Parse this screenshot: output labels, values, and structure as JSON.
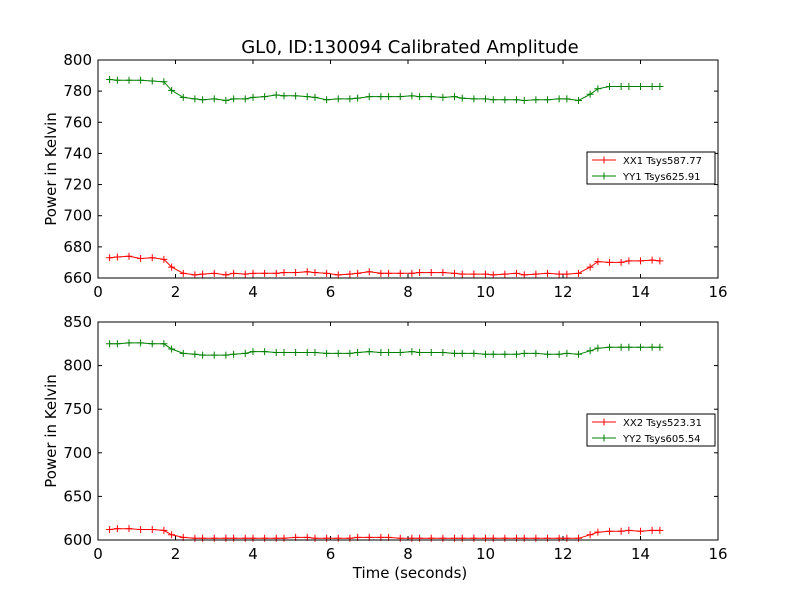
{
  "chart_data": [
    {
      "type": "line",
      "title": "GL0, ID:130094 Calibrated Amplitude",
      "xlabel": "",
      "ylabel": "Power in Kelvin",
      "xlim": [
        0,
        16
      ],
      "ylim": [
        660,
        800
      ],
      "xticks": [
        0,
        2,
        4,
        6,
        8,
        10,
        12,
        14,
        16
      ],
      "yticks": [
        660,
        680,
        700,
        720,
        740,
        760,
        780,
        800
      ],
      "grid": false,
      "legend_position": "center-right",
      "x": [
        0.3,
        0.5,
        0.8,
        1.1,
        1.4,
        1.7,
        1.9,
        2.2,
        2.5,
        2.7,
        3.0,
        3.3,
        3.5,
        3.8,
        4.0,
        4.3,
        4.6,
        4.8,
        5.1,
        5.4,
        5.6,
        5.9,
        6.2,
        6.5,
        6.7,
        7.0,
        7.3,
        7.5,
        7.8,
        8.1,
        8.3,
        8.6,
        8.9,
        9.2,
        9.4,
        9.7,
        10.0,
        10.2,
        10.5,
        10.8,
        11.0,
        11.3,
        11.6,
        11.9,
        12.1,
        12.4,
        12.7,
        12.9,
        13.2,
        13.5,
        13.7,
        14.0,
        14.3,
        14.5
      ],
      "series": [
        {
          "name": "XX1 Tsys587.77",
          "color": "#ff0000",
          "values": [
            673,
            673.5,
            674,
            672.5,
            673,
            672,
            667,
            663,
            662,
            662.5,
            663,
            662,
            663,
            662.5,
            663,
            663,
            663,
            663.5,
            663.5,
            664,
            663.5,
            663,
            662,
            662.5,
            663,
            664,
            663,
            663,
            663,
            663,
            663.5,
            663.5,
            663.5,
            663,
            662.5,
            662.5,
            662.5,
            662,
            662.5,
            663,
            662,
            662.5,
            663,
            662.5,
            662.5,
            663,
            667,
            670.5,
            670,
            670,
            671,
            671,
            671.5,
            671
          ]
        },
        {
          "name": "YY1 Tsys625.91",
          "color": "#008000",
          "values": [
            787.5,
            787,
            787,
            787,
            786.5,
            786,
            780.5,
            776,
            775,
            774.5,
            775,
            774,
            775,
            775,
            776,
            776.5,
            777.5,
            777,
            777,
            776.5,
            776,
            774.5,
            775,
            775,
            775.5,
            776.5,
            776.5,
            776.5,
            776.5,
            777,
            776.5,
            776.5,
            776,
            776.5,
            775.5,
            775,
            775,
            774.5,
            774.5,
            774.5,
            774,
            774.5,
            774.5,
            775,
            775,
            774,
            778,
            781.5,
            783,
            783,
            783,
            783,
            783,
            783
          ]
        }
      ]
    },
    {
      "type": "line",
      "title": "",
      "xlabel": "Time (seconds)",
      "ylabel": "Power in Kelvin",
      "xlim": [
        0,
        16
      ],
      "ylim": [
        600,
        850
      ],
      "xticks": [
        0,
        2,
        4,
        6,
        8,
        10,
        12,
        14,
        16
      ],
      "yticks": [
        600,
        650,
        700,
        750,
        800,
        850
      ],
      "grid": false,
      "legend_position": "center-right",
      "x": [
        0.3,
        0.5,
        0.8,
        1.1,
        1.4,
        1.7,
        1.9,
        2.2,
        2.5,
        2.7,
        3.0,
        3.3,
        3.5,
        3.8,
        4.0,
        4.3,
        4.6,
        4.8,
        5.1,
        5.4,
        5.6,
        5.9,
        6.2,
        6.5,
        6.7,
        7.0,
        7.3,
        7.5,
        7.8,
        8.1,
        8.3,
        8.6,
        8.9,
        9.2,
        9.4,
        9.7,
        10.0,
        10.2,
        10.5,
        10.8,
        11.0,
        11.3,
        11.6,
        11.9,
        12.1,
        12.4,
        12.7,
        12.9,
        13.2,
        13.5,
        13.7,
        14.0,
        14.3,
        14.5
      ],
      "series": [
        {
          "name": "XX2 Tsys523.31",
          "color": "#ff0000",
          "values": [
            612,
            613,
            613,
            612,
            612,
            611,
            606,
            603,
            602,
            602,
            602,
            602,
            602,
            602,
            602,
            602,
            602,
            602,
            603,
            603,
            602,
            602,
            602,
            602,
            603,
            603,
            603,
            603,
            602,
            602,
            602,
            602,
            602,
            602,
            602,
            602,
            602,
            602,
            602,
            602,
            602,
            602,
            602,
            602,
            602,
            602,
            606,
            609,
            610,
            610,
            611,
            610,
            611,
            611
          ]
        },
        {
          "name": "YY2 Tsys605.54",
          "color": "#008000",
          "values": [
            825,
            825,
            826,
            826,
            825,
            825,
            819,
            814,
            813,
            812,
            812,
            812,
            813,
            814,
            816,
            816,
            815,
            815,
            815,
            815,
            815,
            814,
            814,
            814,
            815,
            816,
            815,
            815,
            815,
            816,
            815,
            815,
            815,
            814,
            814,
            814,
            813,
            813,
            813,
            813,
            814,
            814,
            813,
            813,
            814,
            813,
            817,
            820,
            821,
            821,
            821,
            821,
            821,
            821
          ]
        }
      ]
    }
  ]
}
